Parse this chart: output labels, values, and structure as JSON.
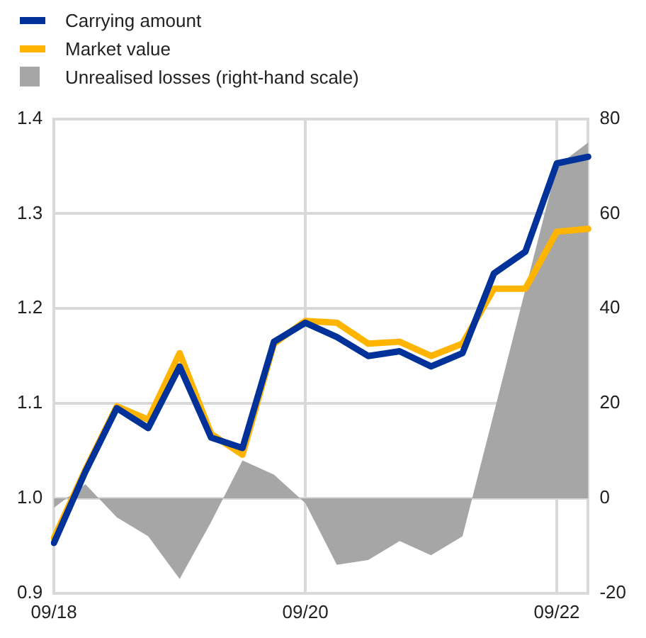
{
  "chart_data": {
    "type": "line",
    "categories": [
      "09/18",
      null,
      null,
      null,
      null,
      null,
      null,
      null,
      "09/20",
      null,
      null,
      null,
      null,
      null,
      null,
      null,
      "09/22",
      null
    ],
    "series": [
      {
        "name": "Unrealised losses (right-hand scale)",
        "type": "area",
        "axis": "y2",
        "color": "#a6a6a6",
        "values": [
          -2,
          3,
          -4,
          -8,
          -17,
          -5,
          8,
          5,
          -1,
          -14,
          -13,
          -9,
          -12,
          -8,
          18,
          44,
          70,
          75
        ]
      },
      {
        "name": "Carrying amount",
        "color": "#003299",
        "values": [
          0.953,
          1.028,
          1.095,
          1.074,
          1.139,
          1.064,
          1.053,
          1.165,
          1.185,
          1.17,
          1.15,
          1.155,
          1.139,
          1.153,
          1.237,
          1.26,
          1.353,
          1.36
        ]
      },
      {
        "name": "Market value",
        "color": "#ffb400",
        "values": [
          0.958,
          1.03,
          1.097,
          1.083,
          1.153,
          1.068,
          1.046,
          1.163,
          1.187,
          1.185,
          1.163,
          1.165,
          1.15,
          1.163,
          1.221,
          1.221,
          1.281,
          1.284
        ]
      }
    ],
    "ylim": [
      0.9,
      1.4
    ],
    "yticks": [
      0.9,
      {
        "value": 1,
        "label": "1.0"
      },
      1.1,
      1.2,
      1.3,
      1.4
    ],
    "y2lim": [
      -20,
      80
    ],
    "y2ticks": [
      -20,
      0,
      20,
      40,
      60,
      80
    ],
    "grid": true,
    "legend": "top left",
    "marker": "none",
    "line_style": "solid"
  }
}
